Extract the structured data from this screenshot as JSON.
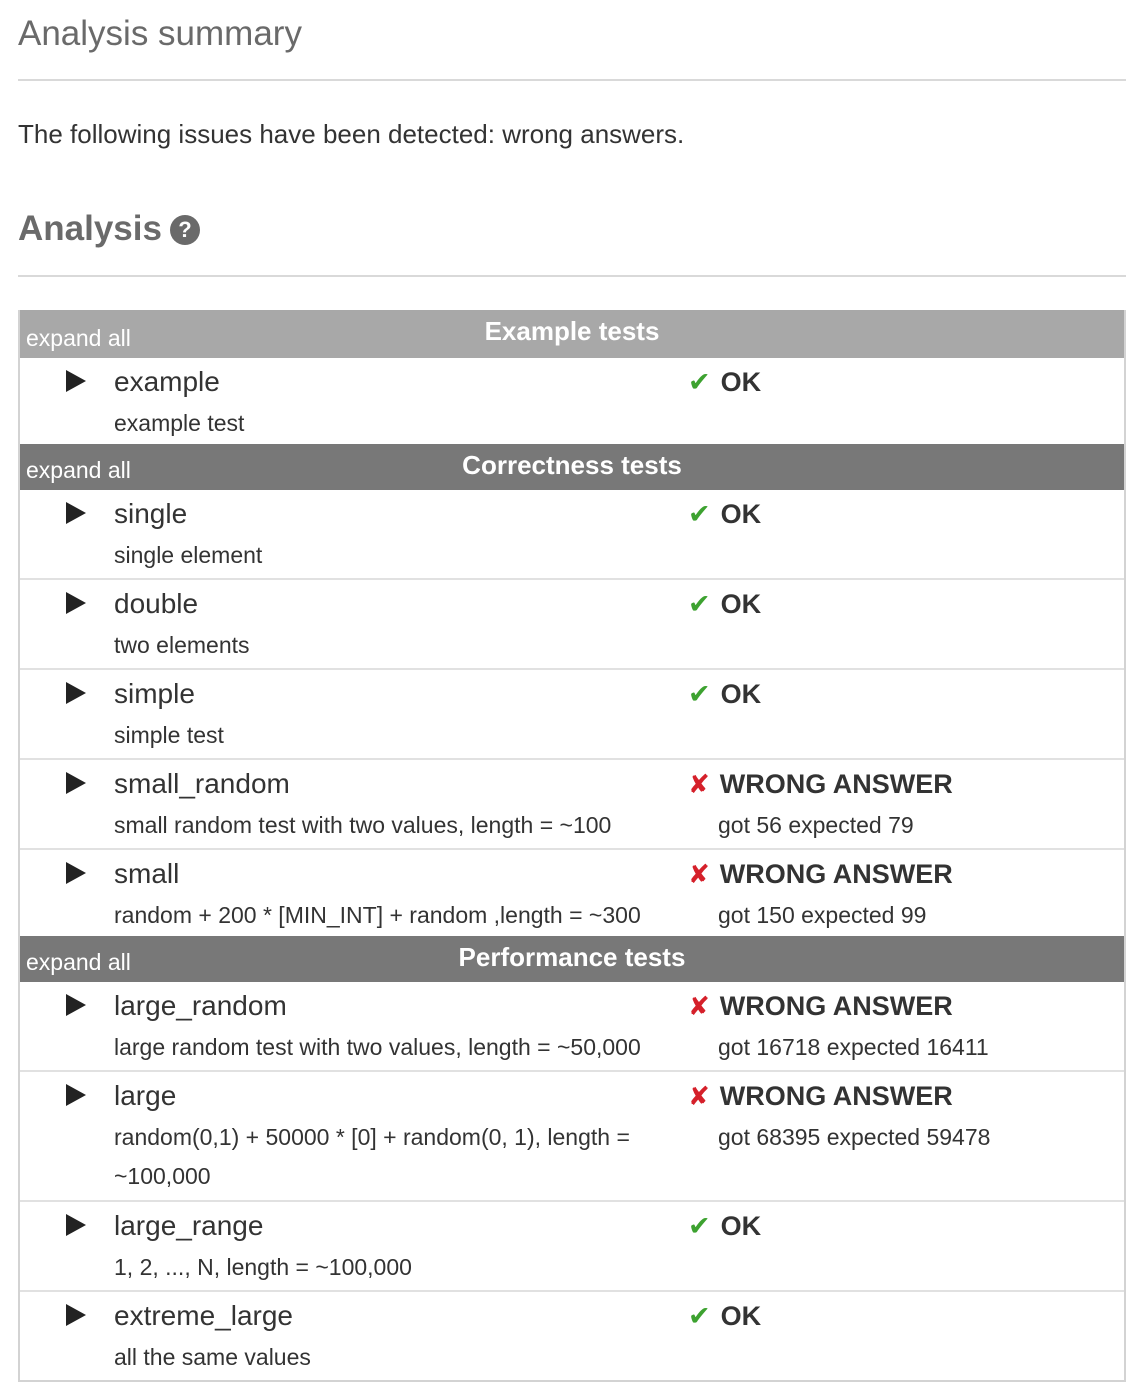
{
  "summary": {
    "title": "Analysis summary",
    "issues_text": "The following issues have been detected: wrong answers."
  },
  "analysis": {
    "title": "Analysis",
    "help_icon": "question-circle-icon",
    "help_glyph": "?"
  },
  "groups": [
    {
      "expand_label": "expand all",
      "title": "Example tests",
      "rows": [
        {
          "name": "example",
          "desc": "example test",
          "status": "OK",
          "result": "ok",
          "detail": ""
        }
      ]
    },
    {
      "expand_label": "expand all",
      "title": "Correctness tests",
      "rows": [
        {
          "name": "single",
          "desc": "single element",
          "status": "OK",
          "result": "ok",
          "detail": ""
        },
        {
          "name": "double",
          "desc": "two elements",
          "status": "OK",
          "result": "ok",
          "detail": ""
        },
        {
          "name": "simple",
          "desc": "simple test",
          "status": "OK",
          "result": "ok",
          "detail": ""
        },
        {
          "name": "small_random",
          "desc": "small random test with two values, length = ~100",
          "status": "WRONG ANSWER",
          "result": "wrong",
          "detail": "got 56 expected 79"
        },
        {
          "name": "small",
          "desc": "random + 200 * [MIN_INT] + random ,length = ~300",
          "status": "WRONG ANSWER",
          "result": "wrong",
          "detail": "got 150 expected 99"
        }
      ]
    },
    {
      "expand_label": "expand all",
      "title": "Performance tests",
      "rows": [
        {
          "name": "large_random",
          "desc": "large random test with two values, length = ~50,000",
          "status": "WRONG ANSWER",
          "result": "wrong",
          "detail": "got 16718 expected 16411"
        },
        {
          "name": "large",
          "desc": "random(0,1) + 50000 * [0] + random(0, 1), length = ~100,000",
          "status": "WRONG ANSWER",
          "result": "wrong",
          "detail": "got 68395 expected 59478"
        },
        {
          "name": "large_range",
          "desc": "1, 2, ..., N, length = ~100,000",
          "status": "OK",
          "result": "ok",
          "detail": ""
        },
        {
          "name": "extreme_large",
          "desc": "all the same values",
          "status": "OK",
          "result": "ok",
          "detail": ""
        }
      ]
    }
  ],
  "icons": {
    "ok": "check-mark-icon",
    "wrong": "x-mark-icon",
    "expand": "triangle-right-icon"
  },
  "colors": {
    "ok": "#3da230",
    "wrong": "#d5202a",
    "header_light": "#a8a8a8",
    "header_dark": "#787878"
  }
}
